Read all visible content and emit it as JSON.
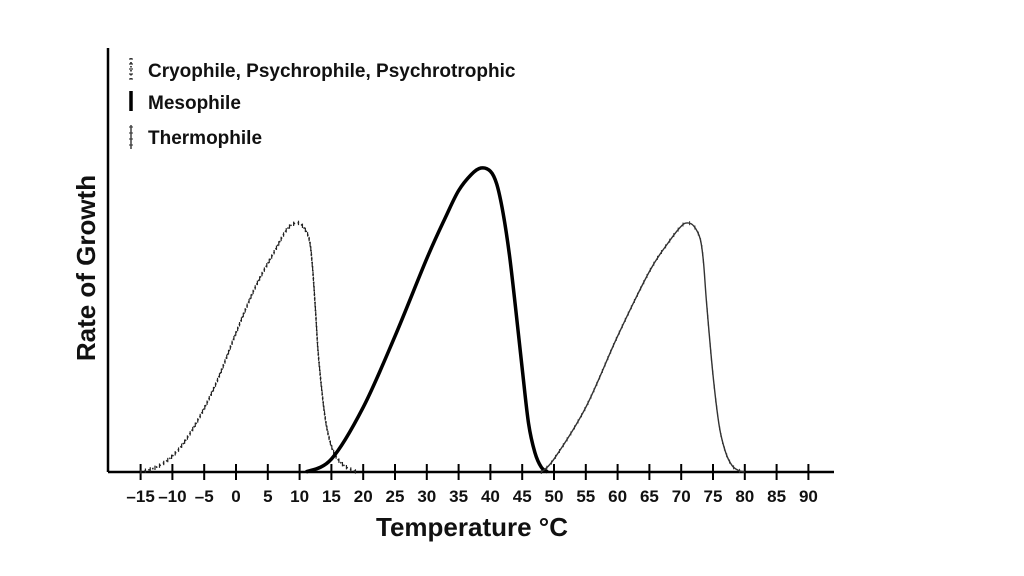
{
  "chart_data": {
    "type": "line",
    "title": "",
    "xlabel": "Temperature °C",
    "ylabel": "Rate of Growth",
    "xlim": [
      -18,
      95
    ],
    "ylim": [
      0,
      100
    ],
    "x_ticks": [
      -15,
      -10,
      -5,
      0,
      5,
      10,
      15,
      20,
      25,
      30,
      35,
      40,
      45,
      50,
      55,
      60,
      65,
      70,
      75,
      80,
      85,
      90
    ],
    "x_tick_labels": [
      "–15",
      "–10",
      "–5",
      "0",
      "5",
      "10",
      "15",
      "20",
      "25",
      "30",
      "35",
      "40",
      "45",
      "50",
      "55",
      "60",
      "65",
      "70",
      "75",
      "80",
      "85",
      "90"
    ],
    "grid": false,
    "legend_position": "top-left",
    "series": [
      {
        "name": "Cryophile, Psychrophile, Psychrotrophic",
        "style": "dotted-ticked",
        "color": "#222222",
        "x": [
          -15,
          -12,
          -9,
          -6,
          -3,
          0,
          3,
          6,
          8,
          9.5,
          10.5,
          11.5,
          12,
          12.5,
          13,
          14,
          15,
          16,
          17,
          18,
          19
        ],
        "y": [
          0,
          2,
          7,
          16,
          28,
          43,
          57,
          68,
          75,
          77,
          76,
          72,
          64,
          50,
          35,
          17,
          8,
          4,
          2,
          0.8,
          0
        ]
      },
      {
        "name": "Mesophile",
        "style": "solid-thick",
        "color": "#000000",
        "x": [
          11,
          15,
          20,
          25,
          30,
          33,
          35,
          37,
          38.5,
          40,
          41,
          42,
          43,
          44,
          45,
          46,
          47,
          48,
          49
        ],
        "y": [
          0,
          4,
          20,
          42,
          66,
          79,
          87,
          92,
          94,
          93,
          89,
          80,
          67,
          50,
          32,
          15,
          6,
          1.5,
          0
        ]
      },
      {
        "name": "Thermophile",
        "style": "thin-ticked",
        "color": "#333333",
        "x": [
          48,
          50,
          55,
          60,
          65,
          68,
          70,
          71,
          72,
          73,
          73.5,
          74,
          75,
          76,
          77,
          78,
          79,
          80
        ],
        "y": [
          0,
          4,
          20,
          42,
          62,
          71,
          76,
          77,
          76,
          72,
          65,
          52,
          30,
          14,
          6,
          2,
          0.5,
          0
        ]
      }
    ]
  }
}
